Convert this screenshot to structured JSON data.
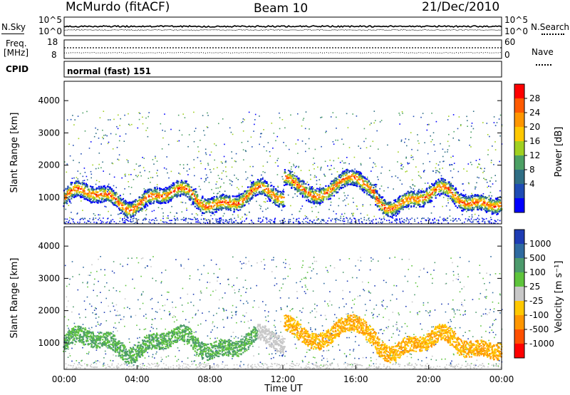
{
  "header": {
    "station": "McMurdo (fitACF)",
    "beam": "Beam 10",
    "date": "21/Dec/2010"
  },
  "noise_panel": {
    "left_label": "N.Sky",
    "right_label": "N.Search",
    "left_ticks": [
      "10^5",
      "10^0"
    ],
    "right_ticks": [
      "10^5",
      "10^0"
    ]
  },
  "freq_panel": {
    "left_label": "Freq.",
    "left_unit": "[MHz]",
    "left_ticks": [
      "18",
      "8"
    ],
    "right_label": "Nave",
    "right_ticks": [
      "60",
      "0"
    ]
  },
  "cpid": {
    "label": "CPID",
    "value": "normal (fast) 151"
  },
  "chart_data": [
    {
      "type": "heatmap",
      "title": "",
      "quantity": "Power",
      "ylabel": "Slant Range [km]",
      "xlabel": "",
      "ylim": [
        180,
        4600
      ],
      "yticks": [
        1000,
        2000,
        3000,
        4000
      ],
      "colorbar": {
        "label": "Power [dB]",
        "ticks": [
          "28",
          "24",
          "20",
          "16",
          "12",
          "8",
          "4"
        ],
        "colors": [
          "#ff0000",
          "#ff5a00",
          "#ff9600",
          "#ffc800",
          "#a0d020",
          "#4ca064",
          "#2f6e84",
          "#1e4bb4",
          "#0000ff"
        ]
      }
    },
    {
      "type": "heatmap",
      "title": "",
      "quantity": "Velocity",
      "ylabel": "Slant Range [km]",
      "xlabel": "Time UT",
      "ylim": [
        180,
        4600
      ],
      "yticks": [
        1000,
        2000,
        3000,
        4000
      ],
      "xticks": [
        "00:00",
        "04:00",
        "08:00",
        "12:00",
        "16:00",
        "20:00",
        "00:00"
      ],
      "colorbar": {
        "label": "Velocity [m s⁻¹]",
        "ticks": [
          "1000",
          "500",
          "100",
          "25",
          "-25",
          "-100",
          "-500",
          "-1000"
        ],
        "colors": [
          "#1e3cb4",
          "#2f6aa0",
          "#4c9a6c",
          "#5ec43c",
          "#c8c8c8",
          "#ffc800",
          "#ff9600",
          "#ff5000",
          "#ff0000"
        ]
      }
    }
  ]
}
